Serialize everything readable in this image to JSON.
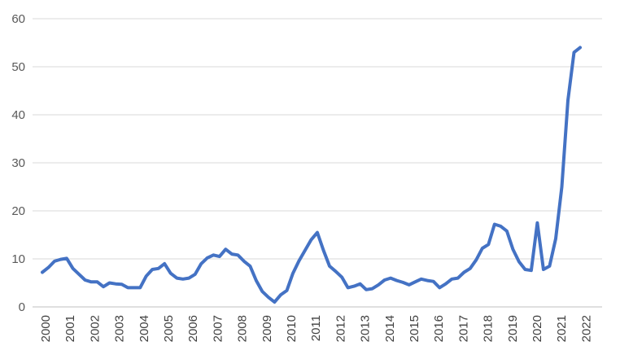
{
  "chart_data": {
    "type": "line",
    "title": "",
    "xlabel": "",
    "ylabel": "",
    "ylim": [
      0,
      60
    ],
    "yticks": [
      "0",
      "10",
      "20",
      "30",
      "40",
      "50",
      "60"
    ],
    "x_tick_labels": [
      "2000",
      "2001",
      "2002",
      "2003",
      "2004",
      "2005",
      "2006",
      "2007",
      "2008",
      "2009",
      "2010",
      "2011",
      "2012",
      "2013",
      "2014",
      "2015",
      "2016",
      "2017",
      "2018",
      "2019",
      "2020",
      "2021",
      "2022"
    ],
    "grid": true,
    "legend": "none",
    "colors": {
      "series": "#4472c4",
      "grid": "#d9d9d9"
    },
    "series": [
      {
        "values": [
          7.2,
          8.2,
          9.5,
          9.9,
          10.1,
          8.0,
          6.8,
          5.6,
          5.2,
          5.2,
          4.2,
          5.0,
          4.8,
          4.7,
          4.0,
          4.0,
          4.0,
          6.4,
          7.8,
          8.0,
          9.0,
          7.0,
          6.0,
          5.8,
          6.0,
          6.8,
          9.0,
          10.2,
          10.8,
          10.5,
          12.0,
          11.0,
          10.8,
          9.5,
          8.5,
          5.5,
          3.2,
          2.0,
          1.0,
          2.5,
          3.4,
          7.0,
          9.6,
          11.8,
          14.0,
          15.5,
          11.8,
          8.5,
          7.4,
          6.2,
          4.0,
          4.3,
          4.8,
          3.6,
          3.8,
          4.6,
          5.6,
          6.0,
          5.5,
          5.1,
          4.6,
          5.2,
          5.8,
          5.5,
          5.3,
          4.0,
          4.8,
          5.8,
          6.0,
          7.2,
          8.0,
          9.8,
          12.2,
          13.0,
          17.2,
          16.8,
          15.8,
          12.0,
          9.4,
          7.8,
          7.6,
          17.5,
          7.8,
          8.5,
          14.2,
          25.0,
          43.0,
          53.0,
          54.0
        ]
      }
    ]
  }
}
